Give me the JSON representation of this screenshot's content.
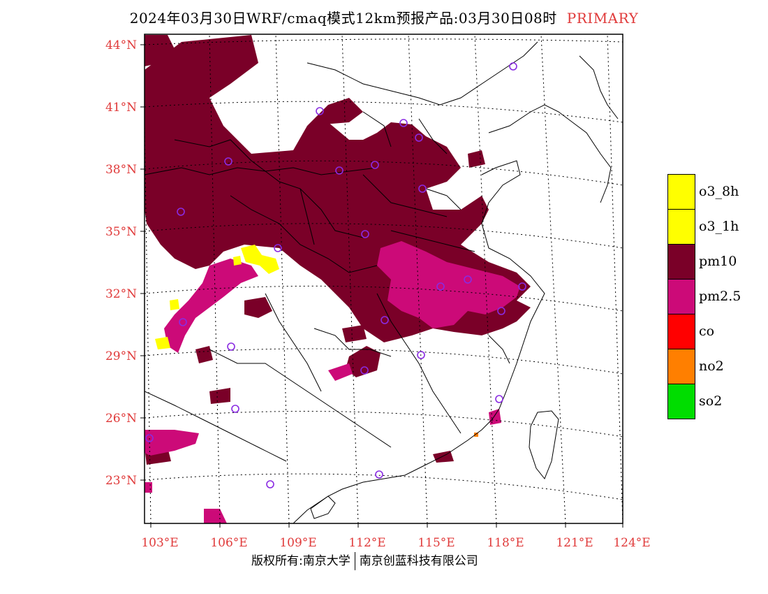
{
  "title": {
    "main": "2024年03月30日WRF/cmaq模式12km预报产品:03月30日08时",
    "tag": "PRIMARY"
  },
  "map": {
    "lat_labels": [
      "44°N",
      "41°N",
      "38°N",
      "35°N",
      "32°N",
      "29°N",
      "26°N",
      "23°N"
    ],
    "lon_labels": [
      "103°E",
      "106°E",
      "109°E",
      "112°E",
      "115°E",
      "118°E",
      "121°E",
      "124°E"
    ],
    "colors": {
      "pm10": "#7a0028",
      "pm25": "#cc0a78",
      "o3": "#ffff00",
      "no2": "#ff7f00",
      "marker": "#8a2be2"
    }
  },
  "legend": {
    "items": [
      {
        "label": "o3_8h",
        "color": "#ffff00"
      },
      {
        "label": "o3_1h",
        "color": "#ffff00"
      },
      {
        "label": "pm10",
        "color": "#7a0028"
      },
      {
        "label": "pm2.5",
        "color": "#cc0a78"
      },
      {
        "label": "co",
        "color": "#ff0000"
      },
      {
        "label": "no2",
        "color": "#ff7f00"
      },
      {
        "label": "so2",
        "color": "#00dd00"
      }
    ]
  },
  "footer": {
    "left": "版权所有:南京大学",
    "right": "南京创蓝科技有限公司"
  }
}
